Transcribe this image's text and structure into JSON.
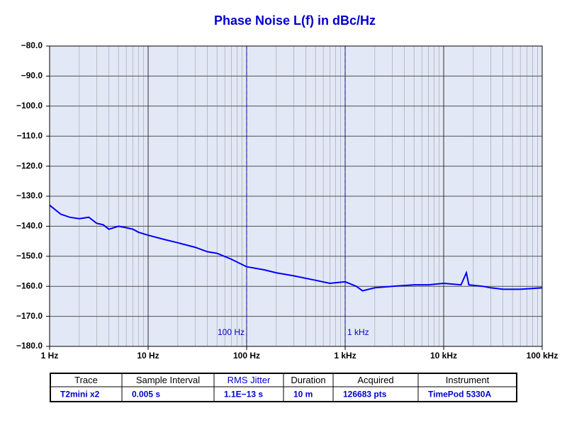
{
  "chart_data": {
    "type": "line",
    "title": "Phase Noise L(f) in dBc/Hz",
    "x_scale": "log",
    "grid": true,
    "color": "#0000ff",
    "x": [
      1,
      1.3,
      1.6,
      2,
      2.5,
      3,
      3.5,
      4,
      5,
      6,
      7,
      8,
      10,
      15,
      20,
      30,
      40,
      50,
      70,
      100,
      150,
      200,
      300,
      500,
      700,
      1000,
      1300,
      1500,
      2000,
      3000,
      5000,
      7000,
      10000,
      15000,
      17000,
      18000,
      25000,
      30000,
      40000,
      60000,
      100000
    ],
    "values": [
      -133,
      -136,
      -137,
      -137.5,
      -137,
      -139,
      -139.5,
      -141,
      -140,
      -140.5,
      -141,
      -142,
      -143,
      -144.5,
      -145.5,
      -147,
      -148.5,
      -149,
      -151,
      -153.5,
      -154.5,
      -155.5,
      -156.5,
      -158,
      -159,
      -158.5,
      -160,
      -161.5,
      -160.5,
      -160,
      -159.5,
      -159.5,
      -159,
      -159.5,
      -155.5,
      -159.5,
      -160,
      -160.5,
      -161,
      -161,
      -160.5
    ],
    "xlim": [
      1,
      100000
    ],
    "ylim": [
      -180,
      -80
    ],
    "xticks": [
      {
        "value": 1,
        "label": "1 Hz"
      },
      {
        "value": 10,
        "label": "10 Hz"
      },
      {
        "value": 100,
        "label": "100 Hz"
      },
      {
        "value": 1000,
        "label": "1 kHz"
      },
      {
        "value": 10000,
        "label": "10 kHz"
      },
      {
        "value": 100000,
        "label": "100 kHz"
      }
    ],
    "yticks": [
      {
        "value": -80,
        "label": "−80.0"
      },
      {
        "value": -90,
        "label": "−90.0"
      },
      {
        "value": -100,
        "label": "−100.0"
      },
      {
        "value": -110,
        "label": "−110.0"
      },
      {
        "value": -120,
        "label": "−120.0"
      },
      {
        "value": -130,
        "label": "−130.0"
      },
      {
        "value": -140,
        "label": "−140.0"
      },
      {
        "value": -150,
        "label": "−150.0"
      },
      {
        "value": -160,
        "label": "−160.0"
      },
      {
        "value": -170,
        "label": "−170.0"
      },
      {
        "value": -180,
        "label": "−180.0"
      }
    ],
    "markers": [
      {
        "x": 100,
        "label": "100 Hz"
      },
      {
        "x": 1000,
        "label": "1 kHz"
      }
    ],
    "table": {
      "columns": [
        "Trace",
        "Sample Interval",
        "RMS Jitter",
        "Duration",
        "Acquired",
        "Instrument"
      ],
      "rows": [
        [
          "T2mini x2",
          "0.005 s",
          "1.1E−13 s",
          "10 m",
          "126683 pts",
          "TimePod 5330A"
        ]
      ]
    }
  }
}
